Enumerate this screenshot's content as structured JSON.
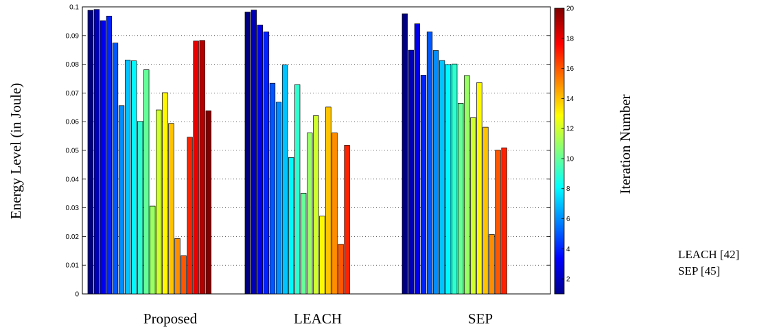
{
  "chart_data": {
    "type": "bar",
    "title": "",
    "ylabel": "Energy Level (in Joule)",
    "xlabel": "",
    "ylim": [
      0,
      0.1
    ],
    "yticks": [
      0,
      0.01,
      0.02,
      0.03,
      0.04,
      0.05,
      0.06,
      0.07,
      0.08,
      0.09,
      0.1
    ],
    "ytick_labels": [
      "0",
      "0.01",
      "0.02",
      "0.03",
      "0.04",
      "0.05",
      "0.06",
      "0.07",
      "0.08",
      "0.09",
      "0.1"
    ],
    "categories": [
      "Proposed",
      "LEACH",
      "SEP"
    ],
    "colorbar": {
      "label": "Iteration Number",
      "range": [
        1,
        20
      ],
      "ticks": [
        2,
        4,
        6,
        8,
        10,
        12,
        14,
        16,
        18,
        20
      ],
      "tick_labels": [
        "2",
        "4",
        "6",
        "8",
        "10",
        "12",
        "14",
        "16",
        "18",
        "20"
      ],
      "colormap": "jet"
    },
    "groups": [
      {
        "category": "Proposed",
        "values": [
          0.0988,
          0.0991,
          0.0952,
          0.0968,
          0.0874,
          0.0656,
          0.0815,
          0.0812,
          0.0601,
          0.0781,
          0.0306,
          0.0641,
          0.0701,
          0.0594,
          0.0193,
          0.0133,
          0.0546,
          0.0881,
          0.0883,
          0.0638
        ]
      },
      {
        "category": "LEACH",
        "values": [
          0.0982,
          0.0989,
          0.0937,
          0.0913,
          0.0734,
          0.0668,
          0.0798,
          0.0475,
          0.0729,
          0.0351,
          0.0561,
          0.0621,
          0.0271,
          0.0651,
          0.0561,
          0.0173,
          0.0518
        ]
      },
      {
        "category": "SEP",
        "values": [
          0.0976,
          0.0849,
          0.0941,
          0.0762,
          0.0913,
          0.0848,
          0.0813,
          0.0799,
          0.0801,
          0.0664,
          0.0761,
          0.0614,
          0.0736,
          0.0581,
          0.0207,
          0.0501,
          0.0509
        ]
      }
    ]
  },
  "side_notes": [
    "LEACH [42]",
    "SEP [45]"
  ]
}
